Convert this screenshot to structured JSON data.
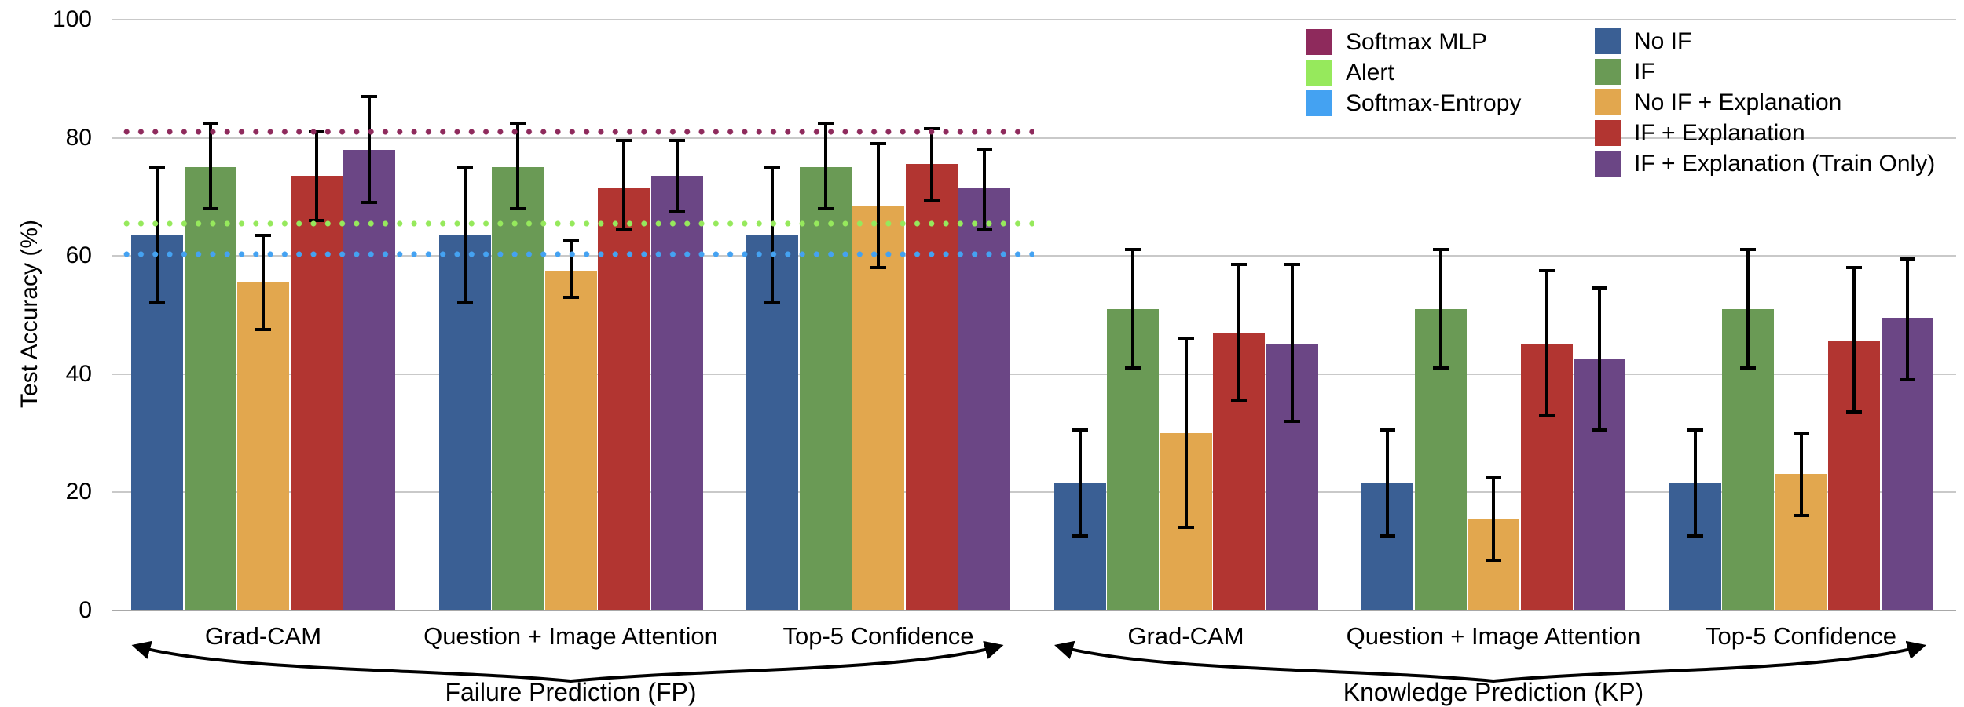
{
  "chart_data": {
    "type": "bar",
    "title": "",
    "ylabel": "Test Accuracy (%)",
    "xlabel": "",
    "ylim": [
      0,
      100
    ],
    "yticks": [
      0,
      20,
      40,
      60,
      80,
      100
    ],
    "grid": "horizontal",
    "legend_position": "top-right",
    "sections": [
      {
        "label": "Failure Prediction (FP)",
        "groups": [
          "Grad-CAM",
          "Question + Image Attention",
          "Top-5 Confidence"
        ]
      },
      {
        "label": "Knowledge Prediction (KP)",
        "groups": [
          "Grad-CAM",
          "Question + Image Attention",
          "Top-5 Confidence"
        ]
      }
    ],
    "group_order": [
      "FP Grad-CAM",
      "FP Question + Image Attention",
      "FP Top-5 Confidence",
      "KP Grad-CAM",
      "KP Question + Image Attention",
      "KP Top-5 Confidence"
    ],
    "series": [
      {
        "name": "No IF",
        "color": "#3A5F94",
        "values": [
          63.5,
          63.5,
          63.5,
          21.5,
          21.5,
          21.5
        ],
        "err_low": [
          52,
          52,
          52,
          12.5,
          12.5,
          12.5
        ],
        "err_high": [
          75,
          75,
          75,
          30.5,
          30.5,
          30.5
        ]
      },
      {
        "name": "IF",
        "color": "#6A9A55",
        "values": [
          75,
          75,
          75,
          51,
          51,
          51
        ],
        "err_low": [
          68,
          68,
          68,
          41,
          41,
          41
        ],
        "err_high": [
          82.5,
          82.5,
          82.5,
          61,
          61,
          61
        ]
      },
      {
        "name": "No IF + Explanation",
        "color": "#E2A74E",
        "values": [
          55.5,
          57.5,
          68.5,
          30,
          15.5,
          23
        ],
        "err_low": [
          47.5,
          53,
          58,
          14,
          8.5,
          16
        ],
        "err_high": [
          63.5,
          62.5,
          79,
          46,
          22.5,
          30
        ]
      },
      {
        "name": "IF + Explanation",
        "color": "#B23531",
        "values": [
          73.5,
          71.5,
          75.5,
          47,
          45,
          45.5
        ],
        "err_low": [
          66,
          64.5,
          69.5,
          35.5,
          33,
          33.5
        ],
        "err_high": [
          81,
          79.5,
          81.5,
          58.5,
          57.5,
          58
        ]
      },
      {
        "name": "IF + Explanation (Train Only)",
        "color": "#6B4685",
        "values": [
          78,
          73.5,
          71.5,
          45,
          42.5,
          49.5
        ],
        "err_low": [
          69,
          67.5,
          64.5,
          32,
          30.5,
          39
        ],
        "err_high": [
          87,
          79.5,
          78,
          58.5,
          54.5,
          59.5
        ]
      }
    ],
    "baselines": [
      {
        "name": "Softmax MLP",
        "color": "#8E2A5C",
        "value": 81,
        "span": "Failure Prediction (FP)"
      },
      {
        "name": "Alert",
        "color": "#96E95C",
        "value": 65.5,
        "span": "Failure Prediction (FP)"
      },
      {
        "name": "Softmax-Entropy",
        "color": "#44A2F2",
        "value": 60.2,
        "span": "Failure Prediction (FP)"
      }
    ]
  }
}
